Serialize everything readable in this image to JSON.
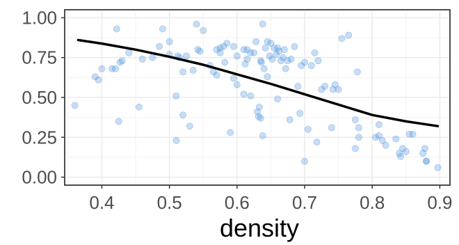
{
  "chart_data": {
    "type": "scatter",
    "title": "",
    "xlabel": "density",
    "ylabel": "",
    "xlim": [
      0.345,
      0.915
    ],
    "ylim": [
      -0.05,
      1.05
    ],
    "x_ticks": [
      0.4,
      0.5,
      0.6,
      0.7,
      0.8,
      0.9
    ],
    "x_tick_labels": [
      "0.4",
      "0.5",
      "0.6",
      "0.7",
      "0.8",
      "0.9"
    ],
    "y_ticks": [
      0.0,
      0.25,
      0.5,
      0.75,
      1.0
    ],
    "y_tick_labels": [
      "0.00",
      "0.25",
      "0.50",
      "0.75",
      "1.00"
    ],
    "grid": true,
    "legend": "none",
    "point_color": "#4a90d9",
    "point_opacity": 0.3,
    "trend_color": "#000000",
    "series": [
      {
        "kind": "points",
        "x": [
          0.36,
          0.39,
          0.395,
          0.4,
          0.415,
          0.42,
          0.422,
          0.425,
          0.427,
          0.43,
          0.44,
          0.455,
          0.46,
          0.475,
          0.485,
          0.49,
          0.5,
          0.5,
          0.51,
          0.51,
          0.512,
          0.515,
          0.52,
          0.52,
          0.525,
          0.53,
          0.535,
          0.54,
          0.542,
          0.545,
          0.55,
          0.56,
          0.565,
          0.57,
          0.57,
          0.575,
          0.575,
          0.58,
          0.582,
          0.585,
          0.59,
          0.595,
          0.595,
          0.6,
          0.6,
          0.61,
          0.61,
          0.612,
          0.615,
          0.615,
          0.62,
          0.62,
          0.625,
          0.628,
          0.63,
          0.632,
          0.633,
          0.635,
          0.635,
          0.636,
          0.638,
          0.638,
          0.64,
          0.642,
          0.645,
          0.645,
          0.648,
          0.65,
          0.652,
          0.655,
          0.658,
          0.66,
          0.66,
          0.662,
          0.665,
          0.668,
          0.67,
          0.672,
          0.675,
          0.678,
          0.68,
          0.685,
          0.69,
          0.693,
          0.695,
          0.7,
          0.7,
          0.705,
          0.71,
          0.715,
          0.718,
          0.72,
          0.725,
          0.73,
          0.74,
          0.742,
          0.745,
          0.75,
          0.755,
          0.765,
          0.775,
          0.775,
          0.778,
          0.78,
          0.78,
          0.805,
          0.81,
          0.81,
          0.815,
          0.82,
          0.835,
          0.84,
          0.842,
          0.845,
          0.85,
          0.855,
          0.86,
          0.875,
          0.878,
          0.88,
          0.88,
          0.897
        ],
        "y": [
          0.45,
          0.63,
          0.61,
          0.68,
          0.68,
          0.68,
          0.93,
          0.35,
          0.72,
          0.73,
          0.78,
          0.44,
          0.74,
          0.75,
          0.82,
          0.93,
          0.77,
          0.85,
          0.23,
          0.51,
          0.76,
          0.75,
          0.66,
          0.39,
          0.76,
          0.32,
          0.67,
          0.96,
          0.8,
          0.79,
          0.92,
          0.7,
          0.66,
          0.64,
          0.8,
          0.78,
          0.81,
          0.82,
          0.72,
          0.84,
          0.28,
          0.62,
          0.82,
          0.58,
          0.76,
          0.52,
          0.8,
          0.71,
          0.8,
          0.74,
          0.51,
          0.78,
          0.78,
          0.85,
          0.41,
          0.38,
          0.44,
          0.37,
          0.73,
          0.72,
          0.96,
          0.26,
          0.68,
          0.81,
          0.63,
          0.85,
          0.76,
          0.84,
          0.74,
          0.81,
          0.77,
          0.81,
          0.49,
          0.79,
          0.73,
          0.75,
          0.8,
          0.68,
          0.73,
          0.36,
          0.74,
          0.82,
          0.57,
          0.4,
          0.7,
          0.1,
          0.72,
          0.3,
          0.7,
          0.78,
          0.22,
          0.73,
          0.55,
          0.57,
          0.31,
          0.55,
          0.58,
          0.55,
          0.87,
          0.89,
          0.36,
          0.18,
          0.66,
          0.31,
          0.25,
          0.25,
          0.26,
          0.33,
          0.23,
          0.2,
          0.24,
          0.15,
          0.13,
          0.18,
          0.16,
          0.27,
          0.27,
          0.15,
          0.18,
          0.1,
          0.1,
          0.06
        ]
      },
      {
        "kind": "trend",
        "x": [
          0.365,
          0.4,
          0.45,
          0.5,
          0.55,
          0.6,
          0.65,
          0.7,
          0.75,
          0.8,
          0.85,
          0.897
        ],
        "y": [
          0.86,
          0.838,
          0.8,
          0.755,
          0.705,
          0.645,
          0.585,
          0.52,
          0.455,
          0.39,
          0.35,
          0.32
        ]
      }
    ]
  }
}
